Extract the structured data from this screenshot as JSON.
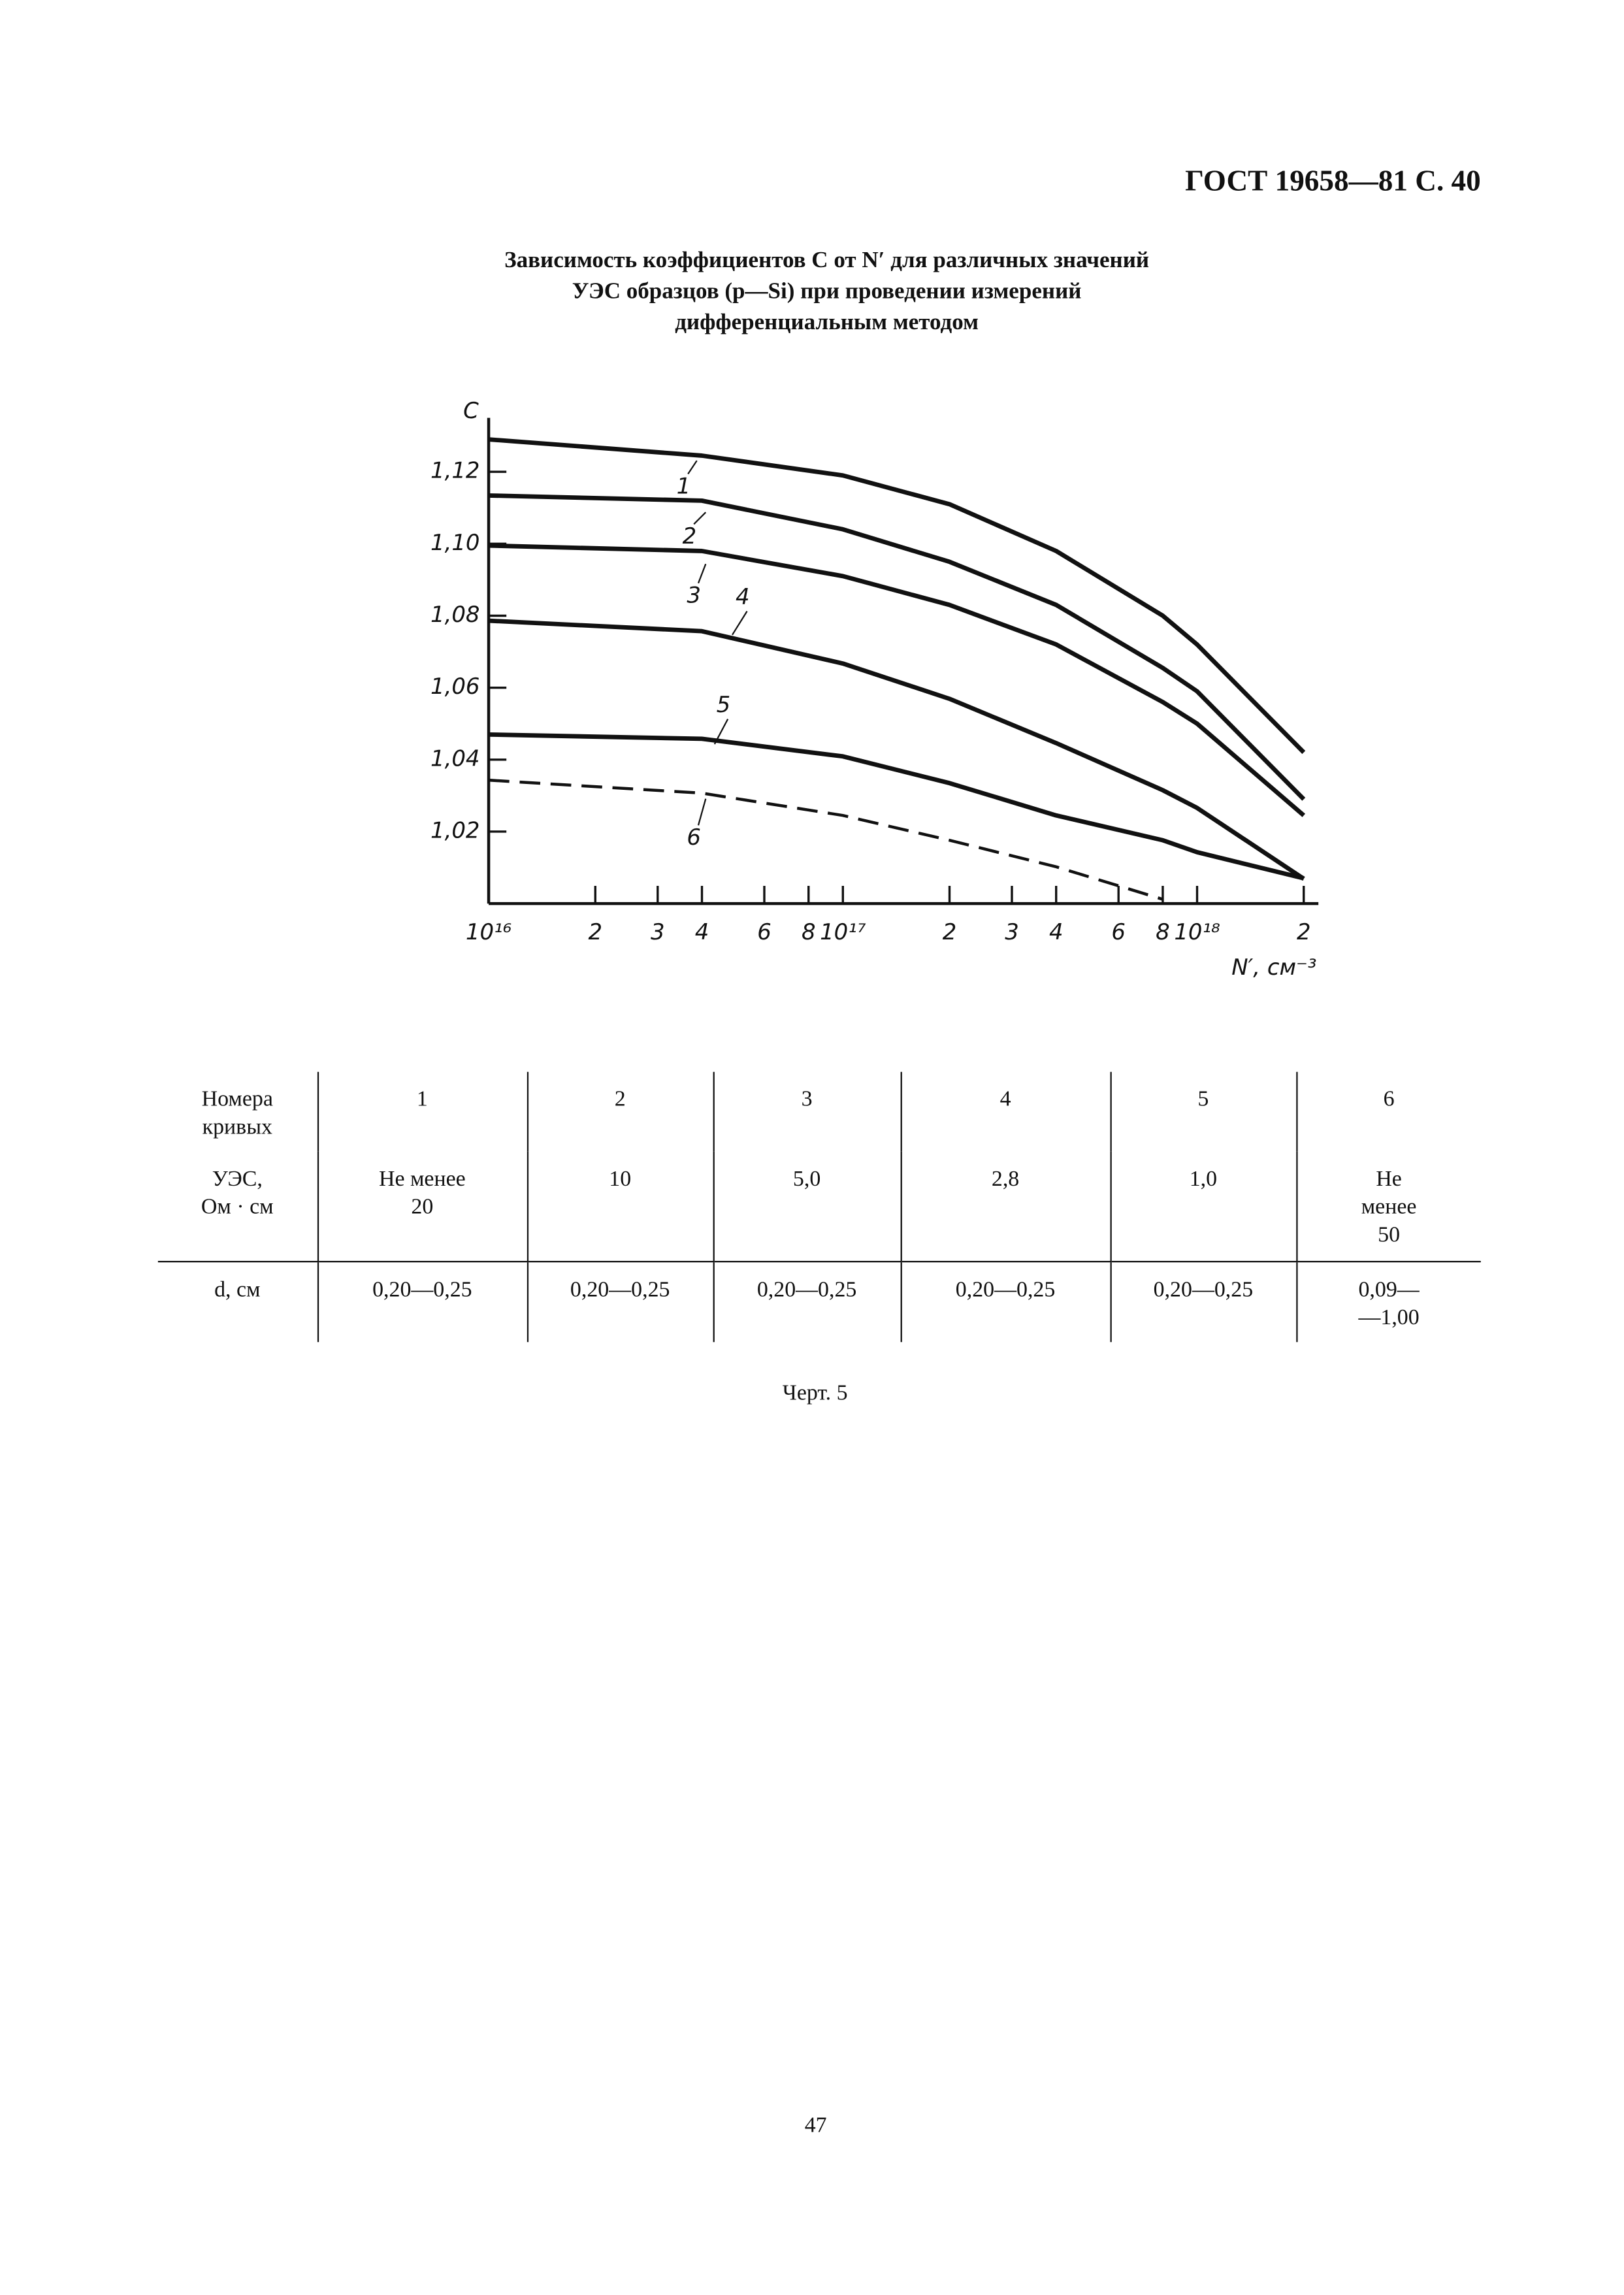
{
  "header": {
    "text": "ГОСТ 19658—81 С. 40"
  },
  "chart_data": {
    "type": "line",
    "title": "Зависимость коэффициентов C от N′ для различных значений УЭС образцов (p—Si) при проведении измерений дифференциальным методом",
    "xlabel": "N′, см⁻³",
    "ylabel": "C",
    "xscale": "log",
    "grid": false,
    "x": [
      1e+16,
      4e+16,
      1e+17,
      2e+17,
      4e+17,
      8e+17,
      1e+18,
      2e+18
    ],
    "series": [
      {
        "name": "1",
        "color": "#111111",
        "values": [
          1.129,
          1.1245,
          1.119,
          1.111,
          1.098,
          1.08,
          1.072,
          1.042
        ]
      },
      {
        "name": "2",
        "color": "#111111",
        "values": [
          1.1134,
          1.112,
          1.104,
          1.095,
          1.083,
          1.0655,
          1.059,
          1.029
        ]
      },
      {
        "name": "3",
        "color": "#111111",
        "values": [
          1.0995,
          1.098,
          1.091,
          1.083,
          1.072,
          1.056,
          1.05,
          1.0245
        ]
      },
      {
        "name": "4",
        "color": "#111111",
        "values": [
          1.0786,
          1.0757,
          1.0667,
          1.0569,
          1.0446,
          1.0315,
          1.0266,
          1.0069
        ]
      },
      {
        "name": "5",
        "color": "#111111",
        "values": [
          1.047,
          1.0458,
          1.0409,
          1.0335,
          1.0245,
          1.0176,
          1.0143,
          1.007
        ]
      },
      {
        "name": "6",
        "color": "#111111",
        "dashed": true,
        "values": [
          1.0343,
          1.0307,
          1.0245,
          1.0176,
          1.0102,
          1.0012,
          null,
          null
        ]
      }
    ],
    "xlim": [
      1e+16,
      2.2e+18
    ],
    "xticks": [
      {
        "value": 1e+16,
        "label": "10¹⁶"
      },
      {
        "value": 2e+16,
        "label": "2"
      },
      {
        "value": 3e+16,
        "label": "3"
      },
      {
        "value": 4e+16,
        "label": "4"
      },
      {
        "value": 6e+16,
        "label": "6"
      },
      {
        "value": 8e+16,
        "label": "8"
      },
      {
        "value": 1e+17,
        "label": "10¹⁷"
      },
      {
        "value": 2e+17,
        "label": "2"
      },
      {
        "value": 3e+17,
        "label": "3"
      },
      {
        "value": 4e+17,
        "label": "4"
      },
      {
        "value": 6e+17,
        "label": "6"
      },
      {
        "value": 8e+17,
        "label": "8"
      },
      {
        "value": 1e+18,
        "label": "10¹⁸"
      },
      {
        "value": 2e+18,
        "label": "2"
      }
    ],
    "ylim": [
      1.0,
      1.135
    ],
    "yticks": [
      {
        "value": 1.02,
        "label": "1,02"
      },
      {
        "value": 1.04,
        "label": "1,04"
      },
      {
        "value": 1.06,
        "label": "1,06"
      },
      {
        "value": 1.08,
        "label": "1,08"
      },
      {
        "value": 1.1,
        "label": "1,10"
      },
      {
        "value": 1.12,
        "label": "1,12"
      }
    ]
  },
  "table": {
    "header": [
      "Номера кривых",
      "1",
      "2",
      "3",
      "4",
      "5",
      "6"
    ],
    "rows": [
      [
        "УЭС,\nОм · см",
        "Не менее\n20",
        "10",
        "5,0",
        "2,8",
        "1,0",
        "Не\nменее\n50"
      ],
      [
        "d, см",
        "0,20—0,25",
        "0,20—0,25",
        "0,20—0,25",
        "0,20—0,25",
        "0,20—0,25",
        "0,09—\n—1,00"
      ]
    ]
  },
  "caption": "Черт. 5",
  "page_number": "47"
}
